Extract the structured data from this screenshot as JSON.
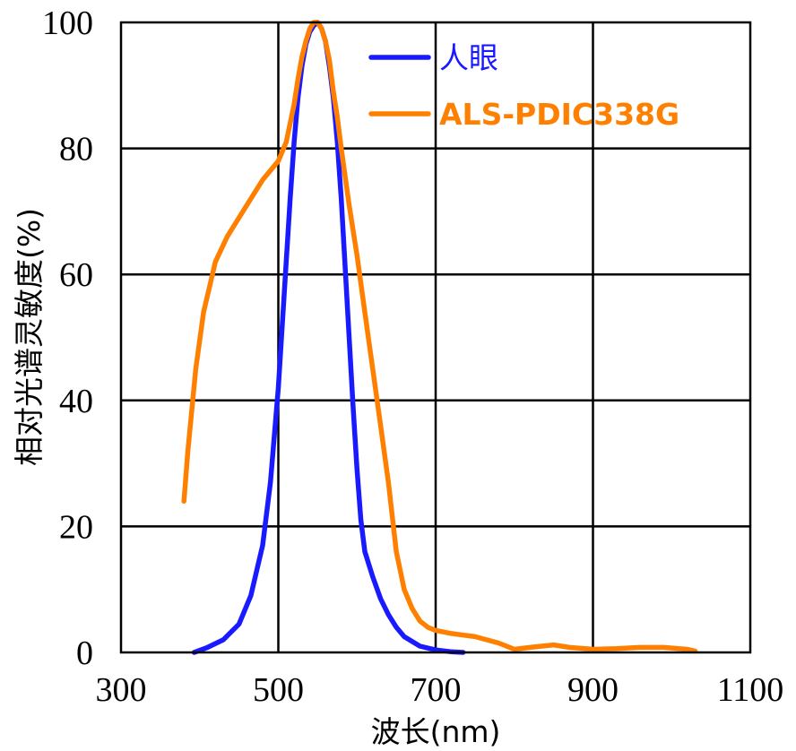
{
  "chart_data": {
    "type": "line",
    "xlabel": "波长(nm)",
    "ylabel": "相对光谱灵敏度(%)",
    "xlim": [
      300,
      1100
    ],
    "ylim": [
      0,
      100
    ],
    "xticks": [
      300,
      500,
      700,
      900,
      1100
    ],
    "yticks": [
      0,
      20,
      40,
      60,
      80,
      100
    ],
    "grid": true,
    "legend_position": "top-right",
    "series": [
      {
        "name": "人眼",
        "color": "#1a1aff",
        "x": [
          393,
          410,
          430,
          450,
          465,
          480,
          490,
          500,
          505,
          510,
          515,
          520,
          525,
          530,
          535,
          540,
          545,
          550,
          555,
          560,
          565,
          570,
          575,
          580,
          585,
          590,
          595,
          600,
          605,
          610,
          620,
          630,
          640,
          650,
          660,
          680,
          700,
          720,
          735
        ],
        "y": [
          0,
          0.8,
          2,
          4.5,
          9,
          17,
          27,
          42,
          52,
          62,
          72,
          81,
          88,
          93,
          96.5,
          98.5,
          99.5,
          100,
          99,
          97,
          93,
          88,
          81,
          72,
          61,
          50,
          39,
          29,
          21,
          16,
          12,
          8.5,
          6,
          4,
          2.5,
          1,
          0.4,
          0.1,
          0
        ]
      },
      {
        "name": "ALS-PDIC338G",
        "color": "#ff8000",
        "x": [
          380,
          385,
          395,
          405,
          420,
          435,
          450,
          465,
          480,
          490,
          500,
          510,
          520,
          525,
          530,
          535,
          540,
          545,
          550,
          555,
          560,
          565,
          570,
          575,
          580,
          590,
          600,
          610,
          620,
          630,
          640,
          650,
          660,
          670,
          680,
          690,
          700,
          720,
          750,
          780,
          800,
          820,
          850,
          870,
          900,
          930,
          960,
          990,
          1020,
          1030
        ],
        "y": [
          24,
          32,
          45,
          54,
          62,
          66,
          69,
          72,
          75,
          76.5,
          78,
          81,
          87,
          91,
          94.5,
          97,
          99,
          100,
          100,
          99,
          97,
          94,
          89,
          85,
          80,
          71,
          63,
          54,
          45,
          36,
          27,
          16,
          10,
          7,
          5,
          4,
          3.5,
          3,
          2.5,
          1.5,
          0.5,
          0.8,
          1.2,
          0.8,
          0.5,
          0.6,
          0.8,
          0.8,
          0.5,
          0.2
        ]
      }
    ]
  }
}
